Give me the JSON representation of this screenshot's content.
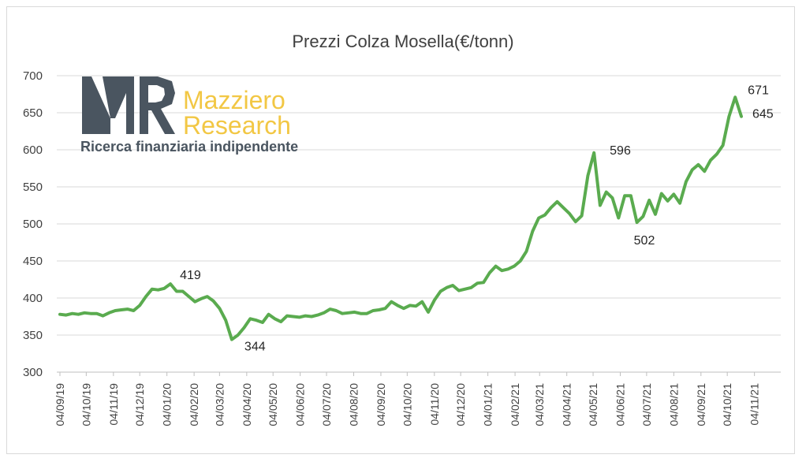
{
  "chart_data": {
    "type": "line",
    "title": "Prezzi Colza Mosella(€/tonn)",
    "xlabel": "",
    "ylabel": "",
    "ylim": [
      300,
      700
    ],
    "yticks": [
      "300",
      "350",
      "400",
      "450",
      "500",
      "550",
      "600",
      "650",
      "700"
    ],
    "xticks": [
      "04/09/19",
      "04/10/19",
      "04/11/19",
      "04/12/19",
      "04/01/20",
      "04/02/20",
      "04/03/20",
      "04/04/20",
      "04/05/20",
      "04/06/20",
      "04/07/20",
      "04/08/20",
      "04/09/20",
      "04/10/20",
      "04/11/20",
      "04/12/20",
      "04/01/21",
      "04/02/21",
      "04/03/21",
      "04/04/21",
      "04/05/21",
      "04/06/21",
      "04/07/21",
      "04/08/21",
      "04/09/21",
      "04/10/21",
      "04/11/21"
    ],
    "grid": true,
    "line_color": "#5aab4f",
    "series": [
      {
        "name": "",
        "points": [
          [
            "2019-09-04",
            378
          ],
          [
            "2019-09-11",
            377
          ],
          [
            "2019-09-18",
            379
          ],
          [
            "2019-09-25",
            378
          ],
          [
            "2019-10-02",
            380
          ],
          [
            "2019-10-09",
            379
          ],
          [
            "2019-10-16",
            379
          ],
          [
            "2019-10-23",
            376
          ],
          [
            "2019-10-30",
            380
          ],
          [
            "2019-11-06",
            383
          ],
          [
            "2019-11-13",
            384
          ],
          [
            "2019-11-20",
            385
          ],
          [
            "2019-11-27",
            383
          ],
          [
            "2019-12-04",
            390
          ],
          [
            "2019-12-11",
            402
          ],
          [
            "2019-12-18",
            412
          ],
          [
            "2019-12-25",
            411
          ],
          [
            "2020-01-01",
            413
          ],
          [
            "2020-01-08",
            419
          ],
          [
            "2020-01-15",
            409
          ],
          [
            "2020-01-22",
            409
          ],
          [
            "2020-01-29",
            402
          ],
          [
            "2020-02-05",
            395
          ],
          [
            "2020-02-12",
            399
          ],
          [
            "2020-02-19",
            402
          ],
          [
            "2020-02-26",
            396
          ],
          [
            "2020-03-04",
            386
          ],
          [
            "2020-03-11",
            370
          ],
          [
            "2020-03-18",
            344
          ],
          [
            "2020-03-25",
            350
          ],
          [
            "2020-04-01",
            360
          ],
          [
            "2020-04-08",
            372
          ],
          [
            "2020-04-15",
            370
          ],
          [
            "2020-04-22",
            367
          ],
          [
            "2020-04-29",
            378
          ],
          [
            "2020-05-06",
            372
          ],
          [
            "2020-05-13",
            368
          ],
          [
            "2020-05-20",
            376
          ],
          [
            "2020-05-27",
            375
          ],
          [
            "2020-06-03",
            374
          ],
          [
            "2020-06-10",
            376
          ],
          [
            "2020-06-17",
            375
          ],
          [
            "2020-06-24",
            377
          ],
          [
            "2020-07-01",
            380
          ],
          [
            "2020-07-08",
            385
          ],
          [
            "2020-07-15",
            383
          ],
          [
            "2020-07-22",
            379
          ],
          [
            "2020-07-29",
            380
          ],
          [
            "2020-08-05",
            381
          ],
          [
            "2020-08-12",
            379
          ],
          [
            "2020-08-19",
            379
          ],
          [
            "2020-08-26",
            383
          ],
          [
            "2020-09-02",
            384
          ],
          [
            "2020-09-09",
            386
          ],
          [
            "2020-09-16",
            395
          ],
          [
            "2020-09-23",
            390
          ],
          [
            "2020-09-30",
            386
          ],
          [
            "2020-10-07",
            390
          ],
          [
            "2020-10-14",
            389
          ],
          [
            "2020-10-21",
            395
          ],
          [
            "2020-10-28",
            381
          ],
          [
            "2020-11-04",
            397
          ],
          [
            "2020-11-11",
            409
          ],
          [
            "2020-11-18",
            414
          ],
          [
            "2020-11-25",
            417
          ],
          [
            "2020-12-02",
            410
          ],
          [
            "2020-12-09",
            412
          ],
          [
            "2020-12-16",
            414
          ],
          [
            "2020-12-23",
            420
          ],
          [
            "2020-12-30",
            421
          ],
          [
            "2021-01-06",
            434
          ],
          [
            "2021-01-13",
            443
          ],
          [
            "2021-01-20",
            437
          ],
          [
            "2021-01-27",
            439
          ],
          [
            "2021-02-03",
            443
          ],
          [
            "2021-02-10",
            450
          ],
          [
            "2021-02-17",
            463
          ],
          [
            "2021-02-24",
            490
          ],
          [
            "2021-03-03",
            508
          ],
          [
            "2021-03-10",
            512
          ],
          [
            "2021-03-17",
            522
          ],
          [
            "2021-03-24",
            530
          ],
          [
            "2021-03-31",
            522
          ],
          [
            "2021-04-07",
            514
          ],
          [
            "2021-04-14",
            503
          ],
          [
            "2021-04-21",
            511
          ],
          [
            "2021-04-28",
            565
          ],
          [
            "2021-05-05",
            596
          ],
          [
            "2021-05-12",
            525
          ],
          [
            "2021-05-19",
            543
          ],
          [
            "2021-05-26",
            535
          ],
          [
            "2021-06-02",
            508
          ],
          [
            "2021-06-09",
            538
          ],
          [
            "2021-06-16",
            538
          ],
          [
            "2021-06-23",
            502
          ],
          [
            "2021-06-30",
            510
          ],
          [
            "2021-07-07",
            532
          ],
          [
            "2021-07-14",
            513
          ],
          [
            "2021-07-21",
            541
          ],
          [
            "2021-07-28",
            531
          ],
          [
            "2021-08-04",
            540
          ],
          [
            "2021-08-11",
            528
          ],
          [
            "2021-08-18",
            557
          ],
          [
            "2021-08-25",
            573
          ],
          [
            "2021-09-01",
            580
          ],
          [
            "2021-09-08",
            571
          ],
          [
            "2021-09-15",
            586
          ],
          [
            "2021-09-22",
            594
          ],
          [
            "2021-09-29",
            606
          ],
          [
            "2021-10-06",
            645
          ],
          [
            "2021-10-13",
            671
          ],
          [
            "2021-10-20",
            645
          ]
        ]
      }
    ],
    "data_labels": [
      {
        "text": "419",
        "date": "2020-01-08",
        "value": 419
      },
      {
        "text": "344",
        "date": "2020-03-18",
        "value": 344
      },
      {
        "text": "596",
        "date": "2021-05-05",
        "value": 596
      },
      {
        "text": "502",
        "date": "2021-06-23",
        "value": 502
      },
      {
        "text": "671",
        "date": "2021-10-13",
        "value": 671
      },
      {
        "text": "645",
        "date": "2021-10-20",
        "value": 645
      }
    ]
  },
  "logo": {
    "mark": "MR",
    "line1": "Mazziero",
    "line2": "Research",
    "tagline": "Ricerca finanziaria indipendente"
  }
}
